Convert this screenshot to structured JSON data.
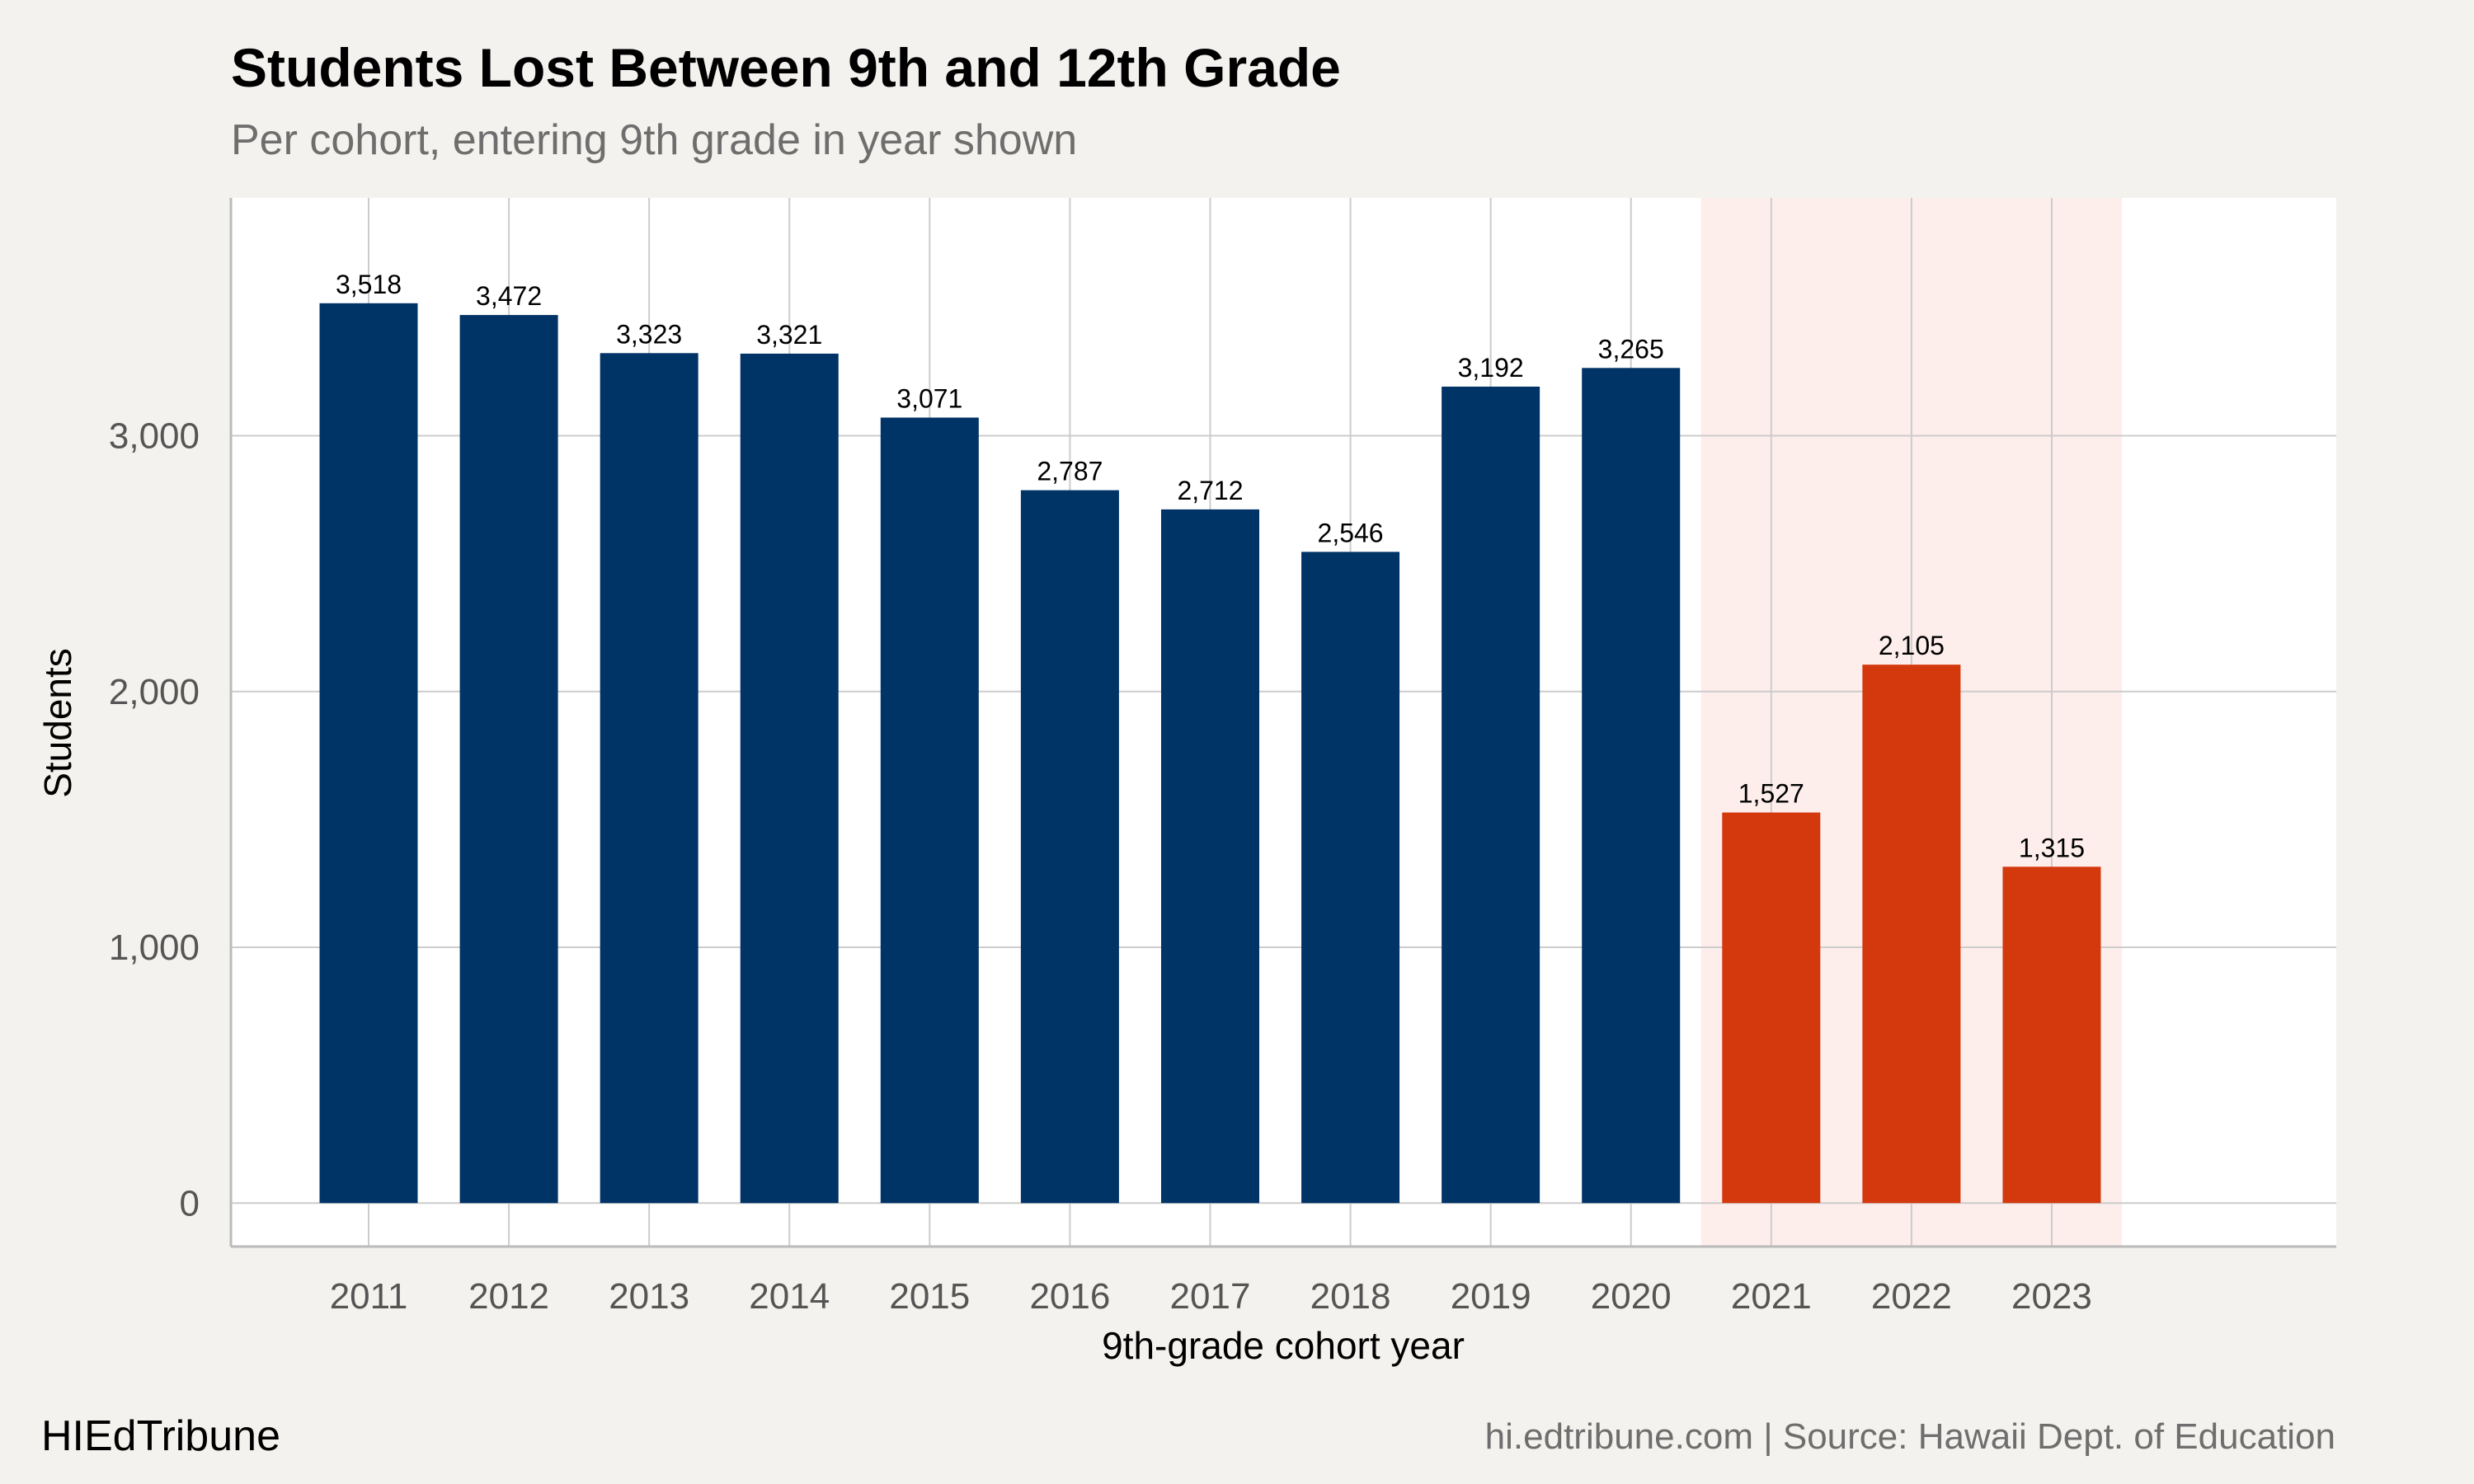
{
  "header": {
    "title": "Students Lost Between 9th and 12th Grade",
    "subtitle": "Per cohort, entering 9th grade in year shown"
  },
  "footer": {
    "brand": "HIEdTribune",
    "source": "hi.edtribune.com | Source: Hawaii Dept. of Education"
  },
  "colors": {
    "background": "#f4f2ee",
    "panel": "#ffffff",
    "pre_pandemic_bar": "#003366",
    "recent_bar": "#d4380d",
    "highlight_band": "#fdeeeb",
    "grid": "#cccccc"
  },
  "chart_data": {
    "type": "bar",
    "title": "Students Lost Between 9th and 12th Grade",
    "subtitle": "Per cohort, entering 9th grade in year shown",
    "xlabel": "9th-grade cohort year",
    "ylabel": "Students",
    "categories": [
      "2011",
      "2012",
      "2013",
      "2014",
      "2015",
      "2016",
      "2017",
      "2018",
      "2019",
      "2020",
      "2021",
      "2022",
      "2023"
    ],
    "values": [
      3518,
      3472,
      3323,
      3321,
      3071,
      2787,
      2712,
      2546,
      3192,
      3265,
      1527,
      2105,
      1315
    ],
    "value_labels": [
      "3,518",
      "3,472",
      "3,323",
      "3,321",
      "3,071",
      "2,787",
      "2,712",
      "2,546",
      "3,192",
      "3,265",
      "1,527",
      "2,105",
      "1,315"
    ],
    "highlighted_categories": [
      "2021",
      "2022",
      "2023"
    ],
    "y_ticks": [
      0,
      1000,
      2000,
      3000
    ],
    "y_tick_labels": [
      "0",
      "1,000",
      "2,000",
      "3,000"
    ],
    "ylim": [
      -170,
      3930
    ],
    "grid": true,
    "legend": "none"
  }
}
